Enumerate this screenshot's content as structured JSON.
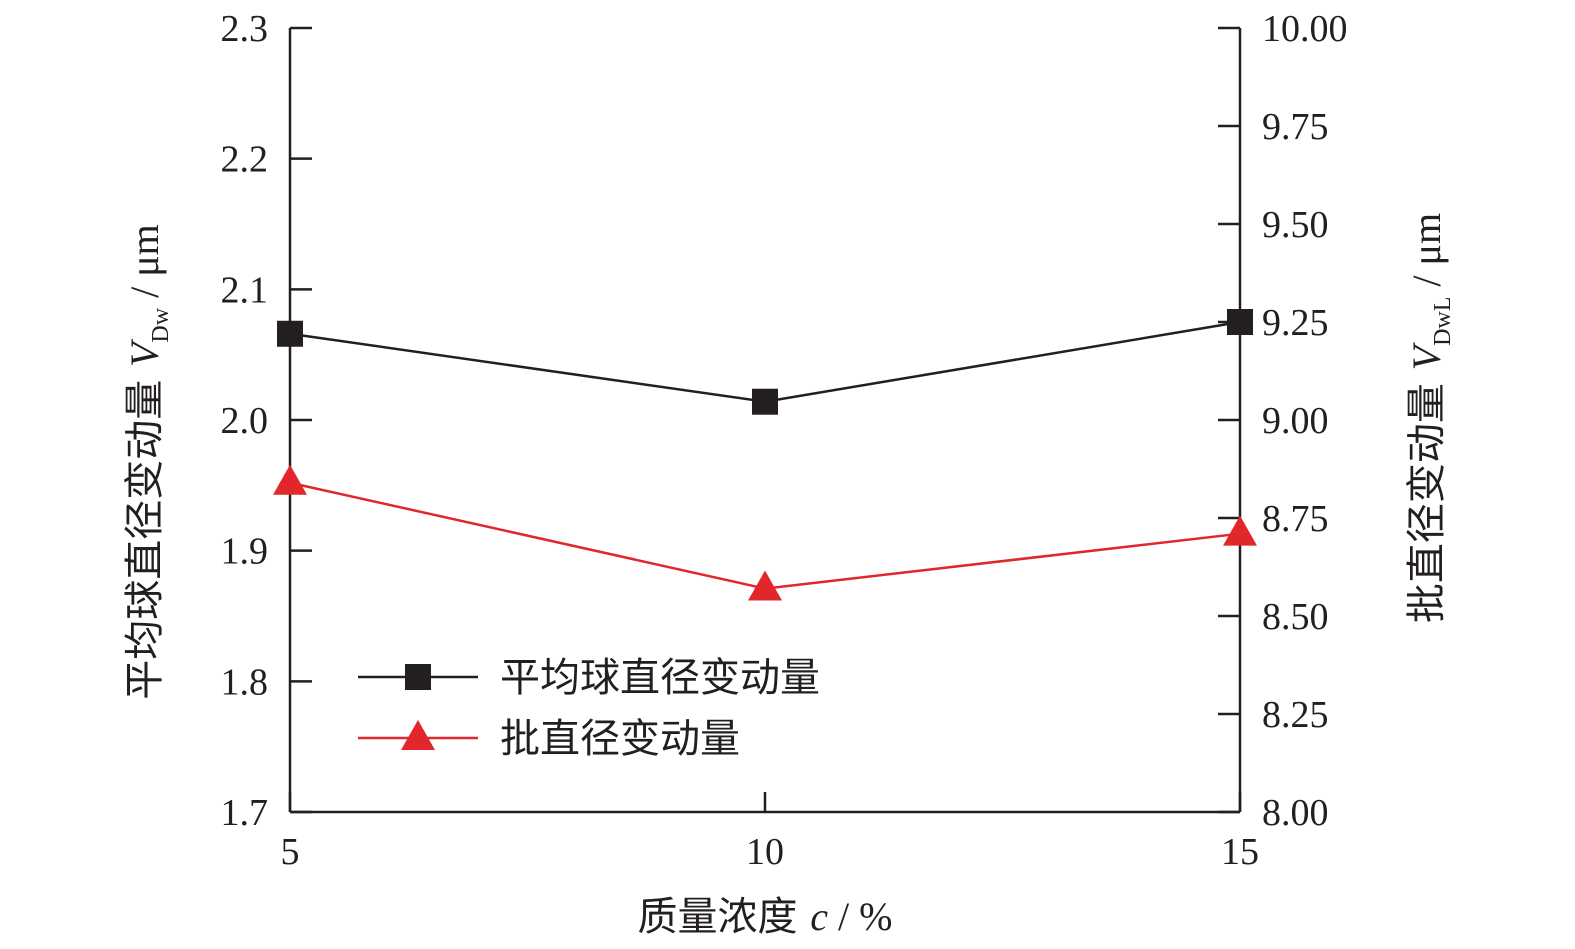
{
  "chart_data": {
    "type": "line",
    "x": [
      5,
      10,
      15
    ],
    "xlim": [
      5,
      15
    ],
    "x_ticks": [
      "5",
      "10",
      "15"
    ],
    "xlabel": {
      "text": "质量浓度 ",
      "var": "c",
      "unit": " / %"
    },
    "y_left": {
      "label": {
        "text": "平均球直径变动量 ",
        "var": "V",
        "sub": "Dw",
        "unit": " / μm"
      },
      "ylim": [
        1.7,
        2.3
      ],
      "ticks": [
        "1.7",
        "1.8",
        "1.9",
        "2.0",
        "2.1",
        "2.2",
        "2.3"
      ]
    },
    "y_right": {
      "label": {
        "text": "批直径变动量 ",
        "var": "V",
        "sub": "DwL",
        "unit": " / μm"
      },
      "ylim": [
        8.0,
        10.0
      ],
      "ticks": [
        "8.00",
        "8.25",
        "8.50",
        "8.75",
        "9.00",
        "9.25",
        "9.50",
        "9.75",
        "10.00"
      ]
    },
    "series": [
      {
        "name": "平均球直径变动量",
        "axis": "left",
        "marker": "square",
        "color": "#231f20",
        "values": [
          2.066,
          2.014,
          2.075
        ]
      },
      {
        "name": "批直径变动量",
        "axis": "right",
        "marker": "triangle",
        "color": "#e1262c",
        "values": [
          8.84,
          8.57,
          8.71
        ]
      }
    ],
    "grid": false,
    "legend_position": "bottom-left"
  }
}
